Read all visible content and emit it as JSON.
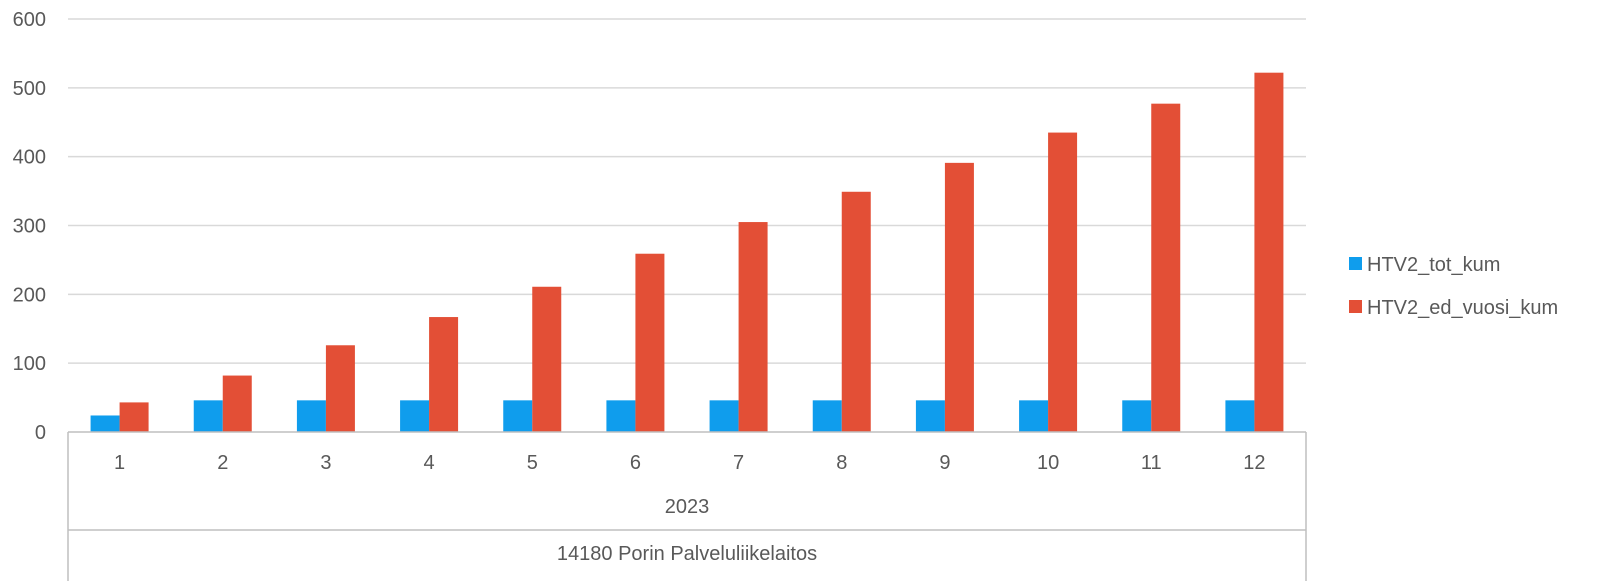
{
  "chart_data": {
    "type": "bar",
    "categories": [
      "1",
      "2",
      "3",
      "4",
      "5",
      "6",
      "7",
      "8",
      "9",
      "10",
      "11",
      "12"
    ],
    "group_labels": {
      "year": "2023",
      "unit": "14180  Porin Palveluliikelaitos"
    },
    "series": [
      {
        "name": "HTV2_tot_kum",
        "color": "#0f9ded",
        "values": [
          24,
          46,
          46,
          46,
          46,
          46,
          46,
          46,
          46,
          46,
          46,
          46
        ]
      },
      {
        "name": "HTV2_ed_vuosi_kum",
        "color": "#e34f36",
        "values": [
          43,
          82,
          126,
          167,
          211,
          259,
          305,
          349,
          391,
          435,
          477,
          522
        ]
      }
    ],
    "yticks": [
      "0",
      "100",
      "200",
      "300",
      "400",
      "500",
      "600"
    ],
    "ylim": [
      0,
      600
    ],
    "grid": true,
    "legend_position": "right"
  }
}
